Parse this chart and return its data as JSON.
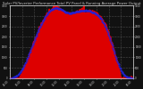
{
  "title": "Solar PV/Inverter Performance Total PV Panel & Running Average Power Output",
  "bg_color": "#111111",
  "plot_bg_color": "#111111",
  "grid_color": "#aaaaaa",
  "fill_color": "#dd0000",
  "avg_color": "#2222dd",
  "text_color": "#cccccc",
  "n": 200,
  "ylim_max": 3500,
  "title_fontsize": 2.8,
  "tick_fontsize": 2.0
}
